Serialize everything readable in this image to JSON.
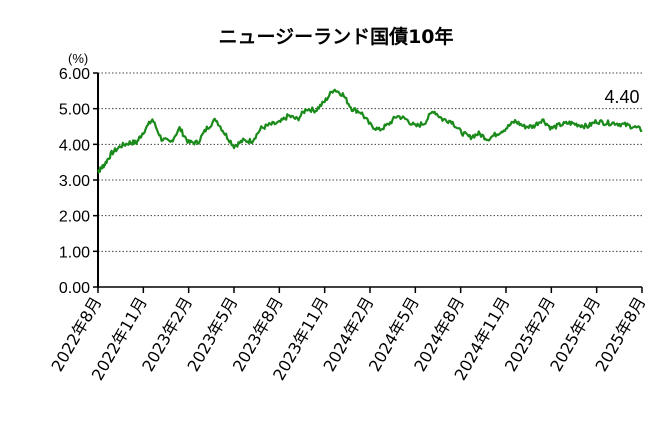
{
  "chart_data": {
    "type": "line",
    "title": "ニュージーランド国債10年",
    "unit_label": "(%)",
    "ylim": [
      0,
      6
    ],
    "y_ticks": [
      "0.00",
      "1.00",
      "2.00",
      "3.00",
      "4.00",
      "5.00",
      "6.00"
    ],
    "x_ticks": [
      "2022年8月",
      "2022年11月",
      "2023年2月",
      "2023年5月",
      "2023年8月",
      "2023年11月",
      "2024年2月",
      "2024年5月",
      "2024年8月",
      "2024年11月",
      "2025年2月",
      "2025年5月",
      "2025年8月"
    ],
    "grid": "horizontal-dotted",
    "line_color": "#1a8a1a",
    "end_label": "4.40",
    "series": [
      {
        "x": [
          0,
          0.05,
          0.15,
          0.3,
          0.5,
          0.7,
          0.85,
          1.0,
          1.2,
          1.4,
          1.6,
          1.8,
          2.0,
          2.2,
          2.4,
          2.6,
          2.8,
          3.0,
          3.2,
          3.4,
          3.6,
          3.8,
          4.0,
          4.2,
          4.4,
          4.6,
          4.8,
          5.0,
          5.2,
          5.4,
          5.6,
          5.8,
          6.0,
          6.2,
          6.4,
          6.6,
          6.8,
          7.0,
          7.2,
          7.4,
          7.6,
          7.8,
          8.0,
          8.2,
          8.4,
          8.6,
          8.8,
          9.0,
          9.2,
          9.4,
          9.6,
          9.8,
          10.0,
          10.2,
          10.4,
          10.6,
          10.8,
          11.0,
          11.2,
          11.4,
          11.6,
          11.8,
          12.0
        ],
        "values": [
          3.25,
          3.3,
          3.45,
          3.75,
          3.95,
          4.05,
          4.05,
          4.35,
          4.7,
          4.15,
          4.05,
          4.45,
          4.05,
          4.05,
          4.45,
          4.7,
          4.3,
          3.95,
          4.1,
          4.1,
          4.45,
          4.55,
          4.6,
          4.8,
          4.7,
          5.0,
          4.95,
          5.2,
          5.55,
          5.4,
          5.0,
          4.9,
          4.55,
          4.4,
          4.55,
          4.8,
          4.7,
          4.5,
          4.6,
          4.95,
          4.7,
          4.65,
          4.35,
          4.2,
          4.3,
          4.15,
          4.3,
          4.45,
          4.65,
          4.5,
          4.5,
          4.7,
          4.45,
          4.55,
          4.6,
          4.55,
          4.5,
          4.65,
          4.6,
          4.6,
          4.55,
          4.5,
          4.4
        ]
      }
    ]
  }
}
